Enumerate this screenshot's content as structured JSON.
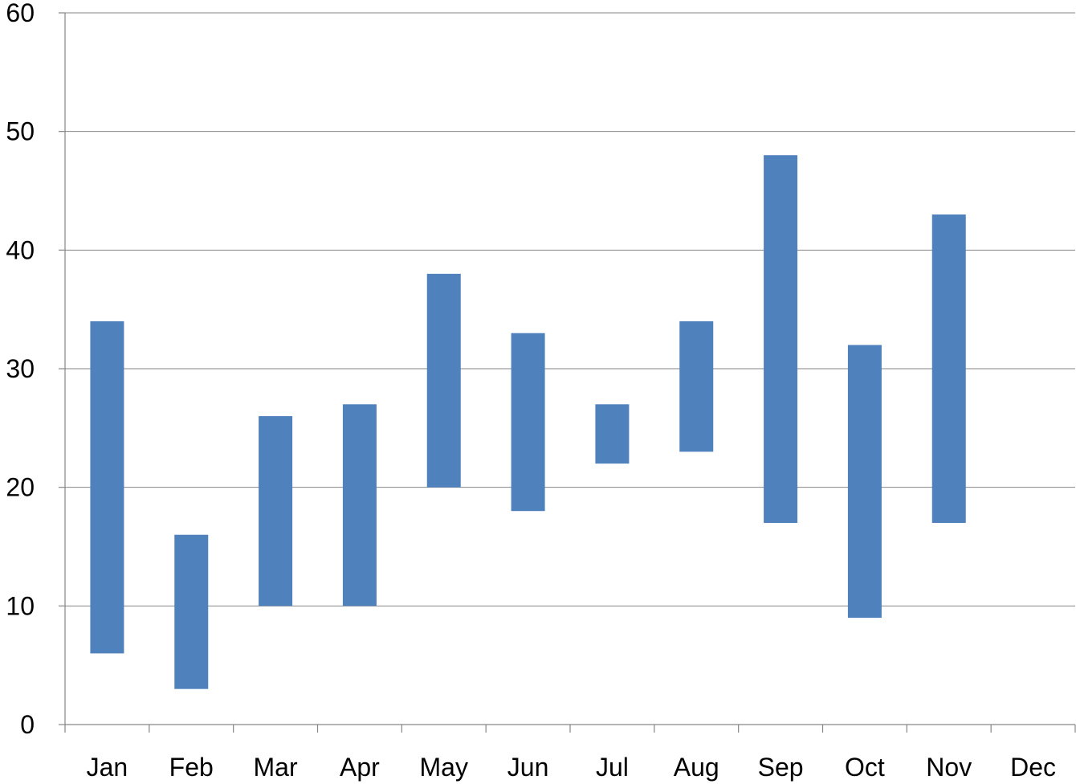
{
  "chart_data": {
    "type": "bar",
    "subtype": "floating-range",
    "title": "",
    "xlabel": "",
    "ylabel": "",
    "categories": [
      "Jan",
      "Feb",
      "Mar",
      "Apr",
      "May",
      "Jun",
      "Jul",
      "Aug",
      "Sep",
      "Oct",
      "Nov",
      "Dec"
    ],
    "series": [
      {
        "low": [
          6,
          3,
          10,
          10,
          20,
          18,
          22,
          23,
          17,
          9,
          17,
          null
        ],
        "high": [
          34,
          16,
          26,
          27,
          38,
          33,
          27,
          34,
          48,
          32,
          43,
          null
        ]
      }
    ],
    "ylim": [
      0,
      60
    ],
    "yticks": [
      0,
      10,
      20,
      30,
      40,
      50,
      60
    ],
    "grid": true,
    "legend": "none",
    "colors": {
      "bar": "#4F81BD",
      "grid": "#868686",
      "text": "#000000"
    }
  }
}
